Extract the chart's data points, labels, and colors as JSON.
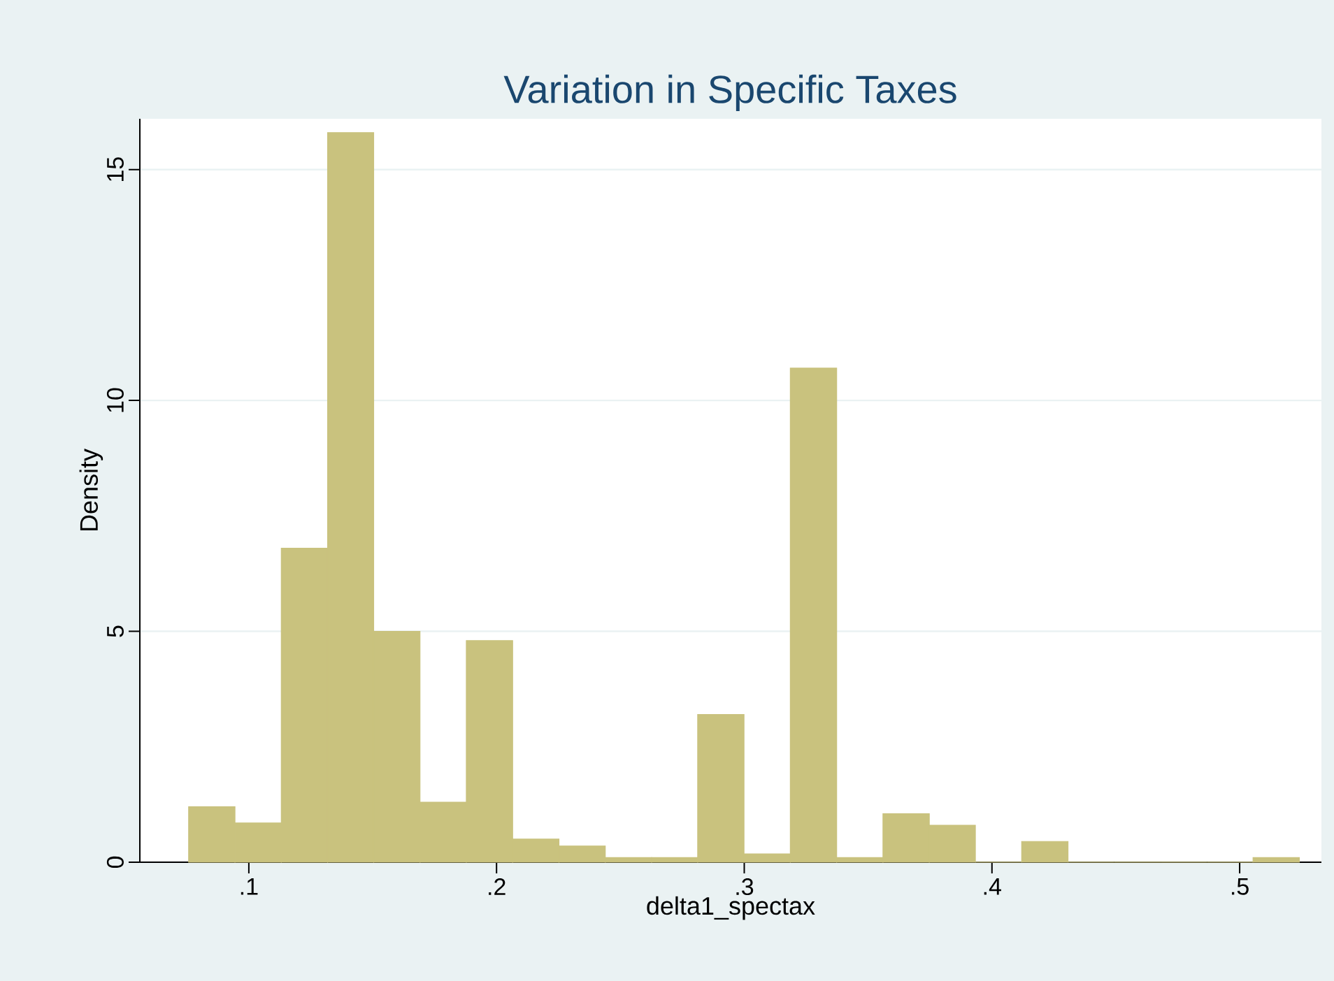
{
  "chart_data": {
    "type": "histogram",
    "title": "Variation in Specific Taxes",
    "xlabel": "delta1_spectax",
    "ylabel": "Density",
    "bins": [
      0.0757,
      0.0944,
      0.1131,
      0.1318,
      0.1504,
      0.1691,
      0.1878,
      0.2065,
      0.2252,
      0.2439,
      0.2626,
      0.2812,
      0.2999,
      0.3186,
      0.3373,
      0.356,
      0.3747,
      0.3933,
      0.412,
      0.4307,
      0.4494,
      0.4681,
      0.4868,
      0.5054,
      0.5241
    ],
    "values": [
      1.2,
      0.85,
      6.8,
      15.8,
      5.0,
      1.3,
      4.8,
      0.5,
      0.35,
      0.1,
      0.1,
      3.2,
      0.18,
      10.7,
      0.1,
      1.05,
      0.8,
      0,
      0.45,
      0,
      0,
      0,
      0,
      0.1
    ],
    "color": "#c9c27e",
    "xlim": [
      0.056,
      0.533
    ],
    "ylim": [
      0,
      16.1
    ],
    "xticks": [
      {
        "value": 0.1,
        "label": ".1"
      },
      {
        "value": 0.2,
        "label": ".2"
      },
      {
        "value": 0.3,
        "label": ".3"
      },
      {
        "value": 0.4,
        "label": ".4"
      },
      {
        "value": 0.5,
        "label": ".5"
      }
    ],
    "yticks": [
      0,
      5,
      10,
      15
    ],
    "grid": "y"
  }
}
